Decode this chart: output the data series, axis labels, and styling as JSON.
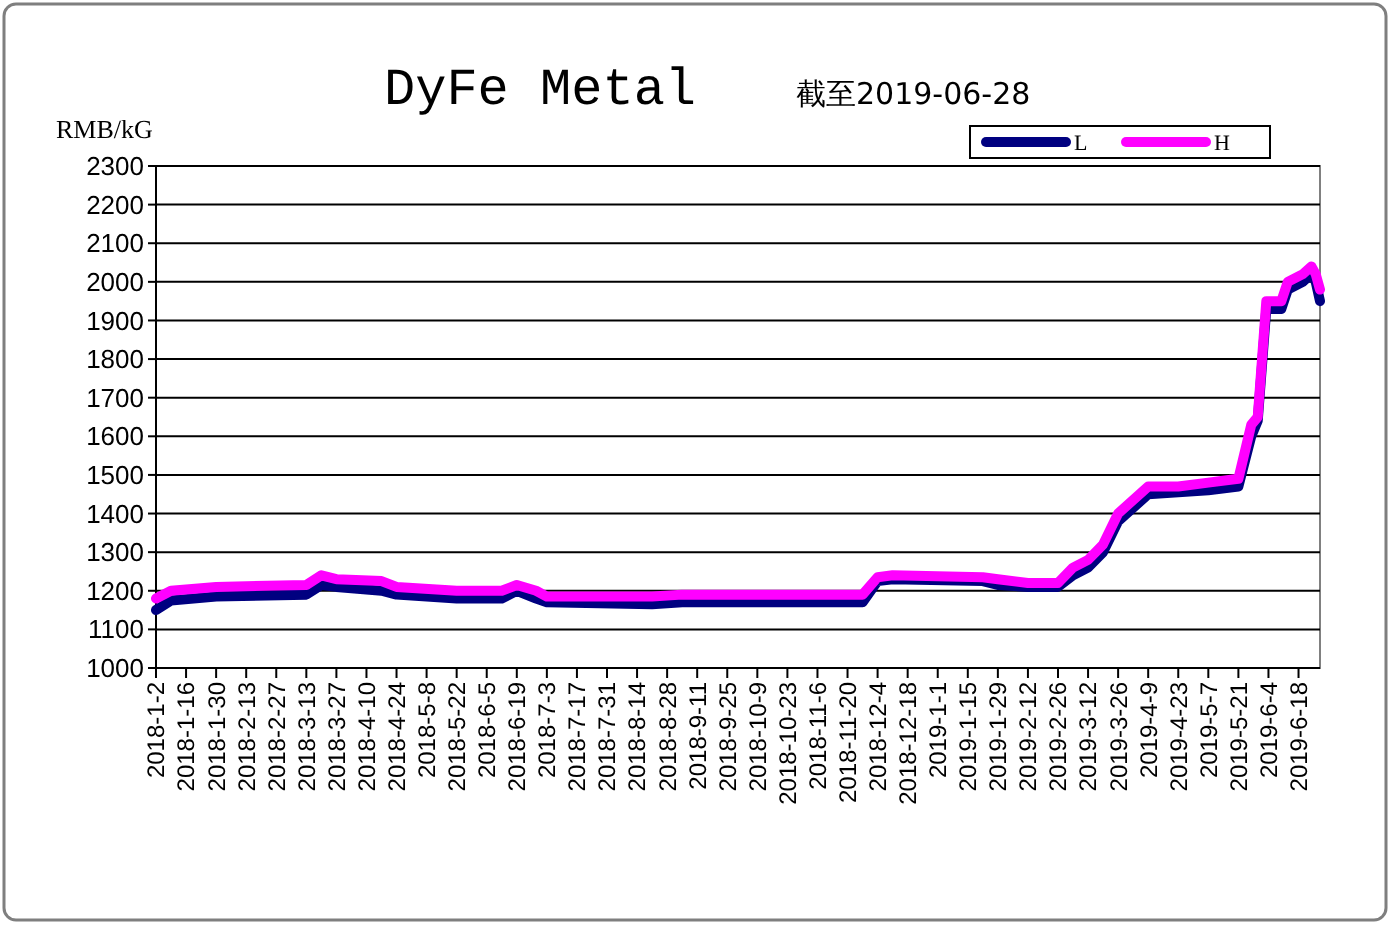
{
  "chart_data": {
    "type": "line",
    "title": "DyFe Metal",
    "subtitle": "截至2019-06-28",
    "ylabel": "RMB/kG",
    "x": [
      "2018-01-02",
      "2018-01-09",
      "2018-01-30",
      "2018-03-13",
      "2018-03-20",
      "2018-03-27",
      "2018-04-17",
      "2018-04-24",
      "2018-05-22",
      "2018-06-12",
      "2018-06-19",
      "2018-06-28",
      "2018-07-03",
      "2018-08-21",
      "2018-09-04",
      "2018-11-27",
      "2018-12-04",
      "2018-12-11",
      "2019-01-22",
      "2019-01-29",
      "2019-02-12",
      "2019-02-26",
      "2019-03-05",
      "2019-03-12",
      "2019-03-19",
      "2019-03-26",
      "2019-04-09",
      "2019-04-23",
      "2019-05-07",
      "2019-05-21",
      "2019-05-27",
      "2019-05-30",
      "2019-06-03",
      "2019-06-10",
      "2019-06-13",
      "2019-06-20",
      "2019-06-24",
      "2019-06-26",
      "2019-06-28"
    ],
    "series": [
      {
        "name": "L",
        "color": "#000080",
        "values": [
          1150,
          1175,
          1185,
          1190,
          1215,
          1210,
          1200,
          1190,
          1180,
          1180,
          1200,
          1180,
          1170,
          1165,
          1170,
          1170,
          1225,
          1230,
          1225,
          1215,
          1210,
          1210,
          1240,
          1260,
          1300,
          1380,
          1450,
          1455,
          1460,
          1470,
          1600,
          1640,
          1930,
          1930,
          1980,
          2000,
          2020,
          2000,
          1950
        ]
      },
      {
        "name": "H",
        "color": "#ff00ff",
        "values": [
          1180,
          1200,
          1210,
          1215,
          1240,
          1230,
          1225,
          1210,
          1200,
          1200,
          1215,
          1200,
          1185,
          1185,
          1190,
          1190,
          1235,
          1240,
          1235,
          1230,
          1220,
          1220,
          1260,
          1280,
          1320,
          1400,
          1470,
          1470,
          1480,
          1490,
          1630,
          1650,
          1950,
          1950,
          2000,
          2020,
          2040,
          2020,
          1980
        ]
      }
    ],
    "xlim": [
      "2018-01-02",
      "2019-06-28"
    ],
    "xticks": [
      {
        "value": "2018-01-02",
        "label": "2018-1-2"
      },
      {
        "value": "2018-01-16",
        "label": "2018-1-16"
      },
      {
        "value": "2018-01-30",
        "label": "2018-1-30"
      },
      {
        "value": "2018-02-13",
        "label": "2018-2-13"
      },
      {
        "value": "2018-02-27",
        "label": "2018-2-27"
      },
      {
        "value": "2018-03-13",
        "label": "2018-3-13"
      },
      {
        "value": "2018-03-27",
        "label": "2018-3-27"
      },
      {
        "value": "2018-04-10",
        "label": "2018-4-10"
      },
      {
        "value": "2018-04-24",
        "label": "2018-4-24"
      },
      {
        "value": "2018-05-08",
        "label": "2018-5-8"
      },
      {
        "value": "2018-05-22",
        "label": "2018-5-22"
      },
      {
        "value": "2018-06-05",
        "label": "2018-6-5"
      },
      {
        "value": "2018-06-19",
        "label": "2018-6-19"
      },
      {
        "value": "2018-07-03",
        "label": "2018-7-3"
      },
      {
        "value": "2018-07-17",
        "label": "2018-7-17"
      },
      {
        "value": "2018-07-31",
        "label": "2018-7-31"
      },
      {
        "value": "2018-08-14",
        "label": "2018-8-14"
      },
      {
        "value": "2018-08-28",
        "label": "2018-8-28"
      },
      {
        "value": "2018-09-11",
        "label": "2018-9-11"
      },
      {
        "value": "2018-09-25",
        "label": "2018-9-25"
      },
      {
        "value": "2018-10-09",
        "label": "2018-10-9"
      },
      {
        "value": "2018-10-23",
        "label": "2018-10-23"
      },
      {
        "value": "2018-11-06",
        "label": "2018-11-6"
      },
      {
        "value": "2018-11-20",
        "label": "2018-11-20"
      },
      {
        "value": "2018-12-04",
        "label": "2018-12-4"
      },
      {
        "value": "2018-12-18",
        "label": "2018-12-18"
      },
      {
        "value": "2019-01-01",
        "label": "2019-1-1"
      },
      {
        "value": "2019-01-15",
        "label": "2019-1-15"
      },
      {
        "value": "2019-01-29",
        "label": "2019-1-29"
      },
      {
        "value": "2019-02-12",
        "label": "2019-2-12"
      },
      {
        "value": "2019-02-26",
        "label": "2019-2-26"
      },
      {
        "value": "2019-03-12",
        "label": "2019-3-12"
      },
      {
        "value": "2019-03-26",
        "label": "2019-3-26"
      },
      {
        "value": "2019-04-09",
        "label": "2019-4-9"
      },
      {
        "value": "2019-04-23",
        "label": "2019-4-23"
      },
      {
        "value": "2019-05-07",
        "label": "2019-5-7"
      },
      {
        "value": "2019-05-21",
        "label": "2019-5-21"
      },
      {
        "value": "2019-06-04",
        "label": "2019-6-4"
      },
      {
        "value": "2019-06-18",
        "label": "2019-6-18"
      }
    ],
    "ylim": [
      1000,
      2300
    ],
    "yticks": [
      1000,
      1100,
      1200,
      1300,
      1400,
      1500,
      1600,
      1700,
      1800,
      1900,
      2000,
      2100,
      2200,
      2300
    ],
    "grid": "y",
    "legend": "top right",
    "marker": "none",
    "line_style": "solid"
  }
}
